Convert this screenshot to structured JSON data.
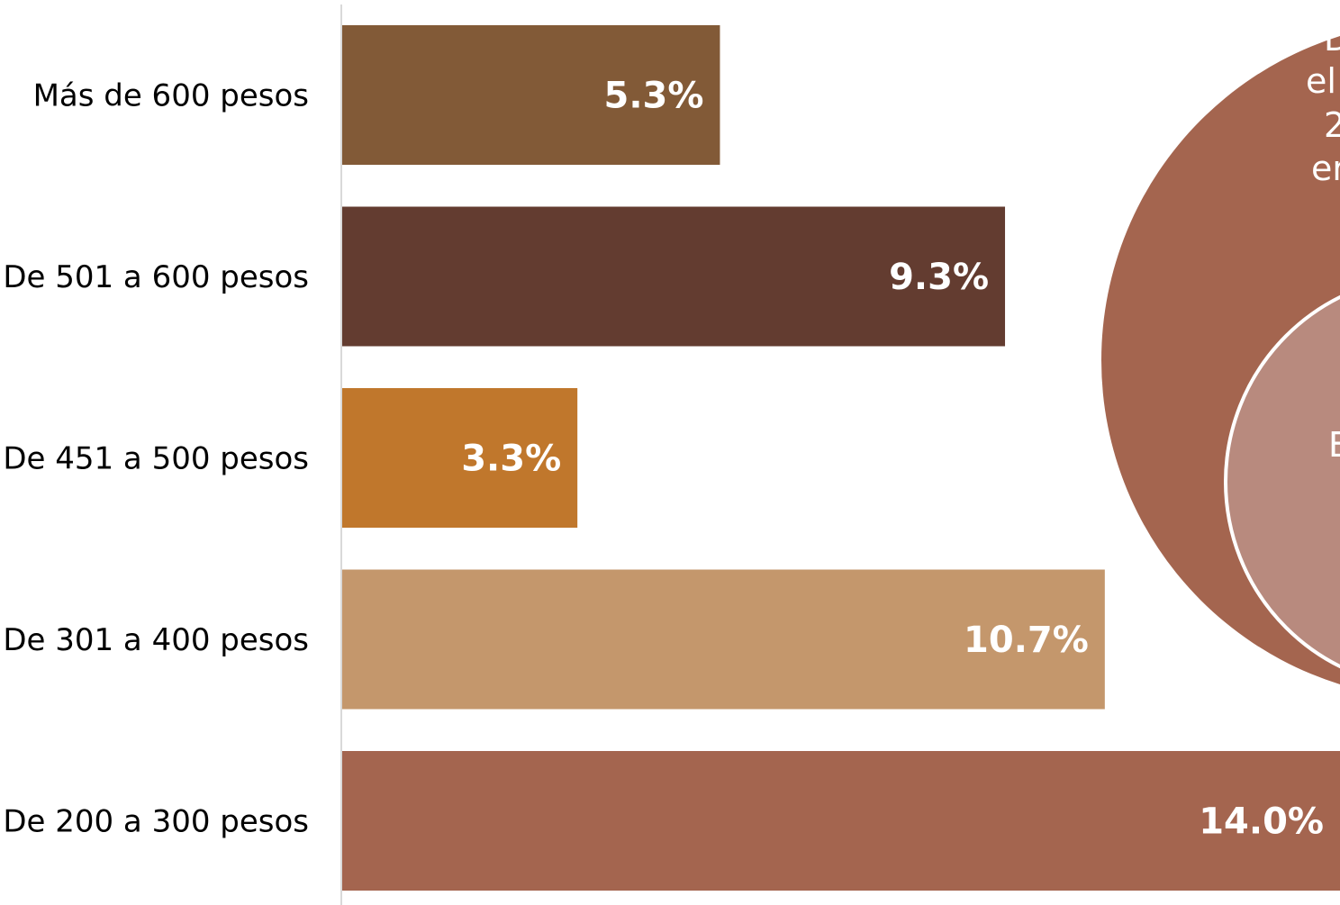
{
  "chart_data": {
    "type": "bar",
    "orientation": "horizontal",
    "categories": [
      "Más de 600 pesos",
      "De 501 a 600 pesos",
      "De 451 a 500 pesos",
      "De 301 a 400 pesos",
      "De 200 a 300 pesos"
    ],
    "values": [
      5.3,
      9.3,
      3.3,
      10.7,
      14.0
    ],
    "value_labels": [
      "5.3%",
      "9.3%",
      "3.3%",
      "10.7%",
      "14.0%"
    ],
    "colors": [
      "#825a37",
      "#633c30",
      "#c0772c",
      "#c4976c",
      "#a4654f"
    ],
    "xlim": [
      0,
      14.0
    ],
    "grid": false,
    "legend": "none"
  },
  "callout": {
    "outer_color": "#a4654f",
    "inner_color": "#b88a7e",
    "outer_lines": [
      "D",
      "el",
      "2",
      "er"
    ],
    "inner_lines": [
      "E"
    ]
  }
}
